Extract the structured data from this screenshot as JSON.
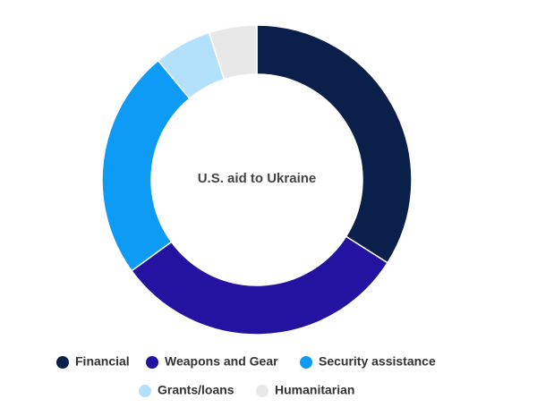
{
  "chart_data": {
    "type": "donut",
    "title": "U.S. aid to Ukraine",
    "categories": [
      "Financial",
      "Weapons and Gear",
      "Security assistance",
      "Grants/loans",
      "Humanitarian"
    ],
    "values": [
      34,
      31,
      24,
      6,
      5
    ],
    "colors": [
      "#0b1f4b",
      "#2313a0",
      "#0d9bf5",
      "#b3e0fb",
      "#e8e8e8"
    ]
  }
}
